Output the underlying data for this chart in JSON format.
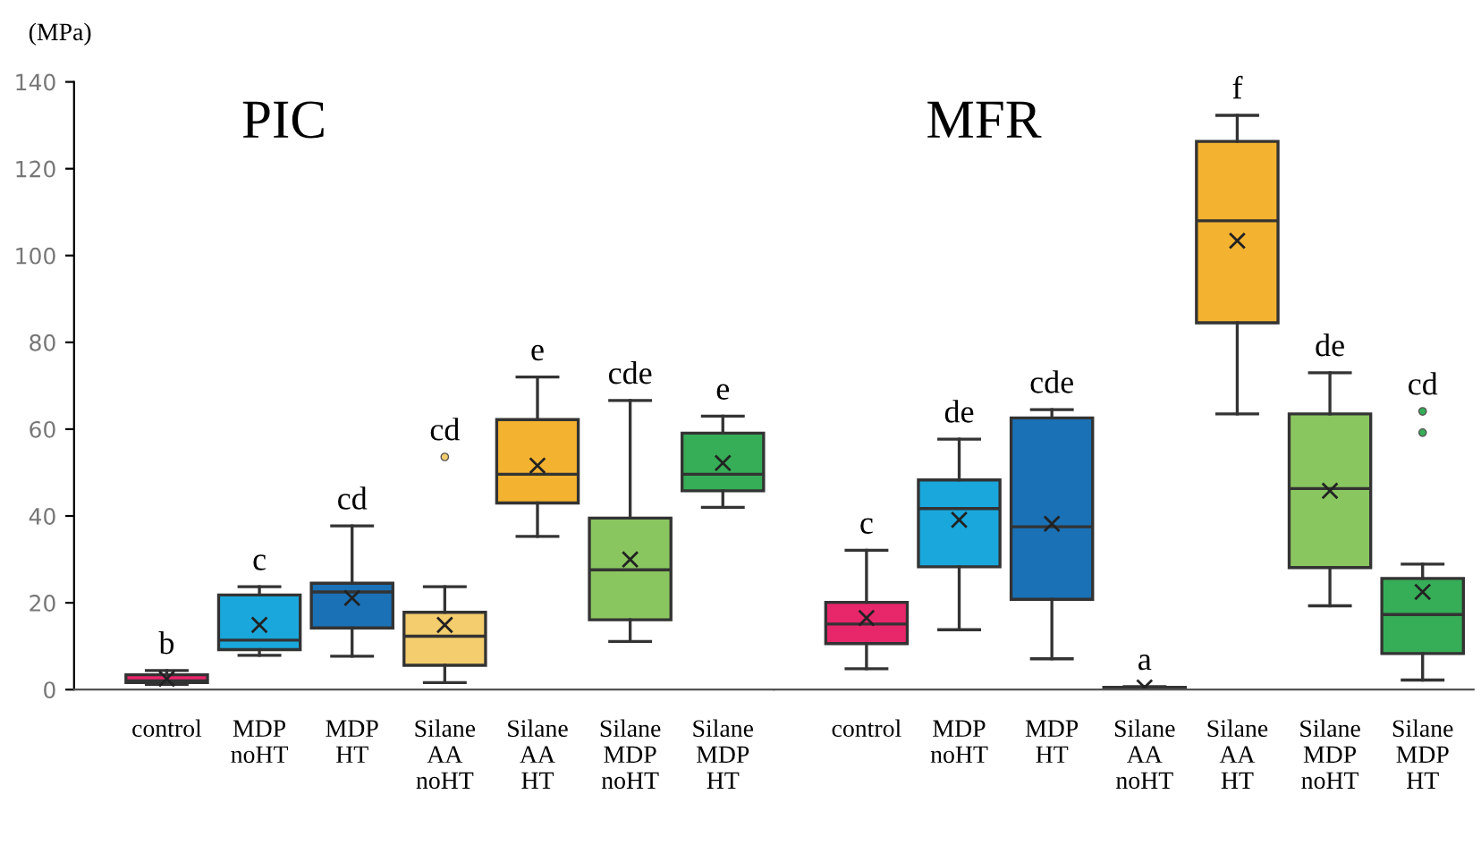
{
  "chart_data": [
    {
      "type": "box",
      "title": "PIC",
      "ylabel": "(MPa)",
      "categories": [
        "control",
        "MDP\nnoHT",
        "MDP\nHT",
        "Silane\nAA\nnoHT",
        "Silane\nAA\nHT",
        "Silane\nMDP\nnoHT",
        "Silane\nMDP\nHT"
      ],
      "colors": [
        "#e8266a",
        "#1aa7dc",
        "#1a71b6",
        "#f3cd6e",
        "#f3b230",
        "#8ac660",
        "#36ad57"
      ],
      "boxes": [
        {
          "low": 1.2,
          "q1": 1.6,
          "median": 2,
          "q3": 3.4,
          "high": 4.4,
          "mean": 2.5
        },
        {
          "low": 7.9,
          "q1": 9.2,
          "median": 11.4,
          "q3": 21.8,
          "high": 23.7,
          "mean": 14.9
        },
        {
          "low": 7.7,
          "q1": 14.2,
          "median": 22.5,
          "q3": 24.5,
          "high": 37.7,
          "mean": 21.1
        },
        {
          "low": 1.6,
          "q1": 5.6,
          "median": 12.3,
          "q3": 17.8,
          "high": 23.7,
          "mean": 14.9,
          "outliers": [
            53.6
          ]
        },
        {
          "low": 35.3,
          "q1": 43,
          "median": 49.6,
          "q3": 62.2,
          "high": 72,
          "mean": 51.6
        },
        {
          "low": 11.1,
          "q1": 16.1,
          "median": 27.6,
          "q3": 39.5,
          "high": 66.6,
          "mean": 30
        },
        {
          "low": 42,
          "q1": 45.8,
          "median": 49.6,
          "q3": 59.1,
          "high": 63,
          "mean": 52.2
        }
      ],
      "annotations": [
        "b",
        "c",
        "cd",
        "cd",
        "e",
        "cde",
        "e"
      ],
      "ylim": [
        0,
        140
      ],
      "yticks": [
        0,
        20,
        40,
        60,
        80,
        100,
        120,
        140
      ],
      "marker": "cross"
    },
    {
      "type": "box",
      "title": "MFR",
      "categories": [
        "control",
        "MDP\nnoHT",
        "MDP\nHT",
        "Silane\nAA\nnoHT",
        "Silane\nAA\nHT",
        "Silane\nMDP\nnoHT",
        "Silane\nMDP\nHT"
      ],
      "colors": [
        "#e8266a",
        "#1aa7dc",
        "#1a71b6",
        "#f3cd6e",
        "#f3b230",
        "#8ac660",
        "#36ad57"
      ],
      "boxes": [
        {
          "low": 4.8,
          "q1": 10.6,
          "median": 15.1,
          "q3": 20.1,
          "high": 32.1,
          "mean": 16.5
        },
        {
          "low": 13.8,
          "q1": 28.3,
          "median": 41.7,
          "q3": 48.3,
          "high": 57.7,
          "mean": 39.1
        },
        {
          "low": 7.1,
          "q1": 20.8,
          "median": 37.5,
          "q3": 62.6,
          "high": 64.5,
          "mean": 38.2
        },
        {
          "low": 0,
          "q1": 0.3,
          "median": 0.5,
          "q3": 0.5,
          "high": 0.7,
          "mean": 0.5
        },
        {
          "low": 63.5,
          "q1": 84.5,
          "median": 108,
          "q3": 126.3,
          "high": 132.3,
          "mean": 103.4
        },
        {
          "low": 19.3,
          "q1": 28.1,
          "median": 46.3,
          "q3": 63.5,
          "high": 73,
          "mean": 45.8
        },
        {
          "low": 2.2,
          "q1": 8.3,
          "median": 17.3,
          "q3": 25.6,
          "high": 28.9,
          "mean": 22.5,
          "outliers": [
            64.1,
            59.2
          ]
        }
      ],
      "annotations": [
        "c",
        "de",
        "cde",
        "a",
        "f",
        "de",
        "cd"
      ],
      "ylim": [
        0,
        140
      ],
      "yticks": [
        0,
        20,
        40,
        60,
        80,
        100,
        120,
        140
      ],
      "tick_labels": "x",
      "marker": "cross"
    }
  ]
}
